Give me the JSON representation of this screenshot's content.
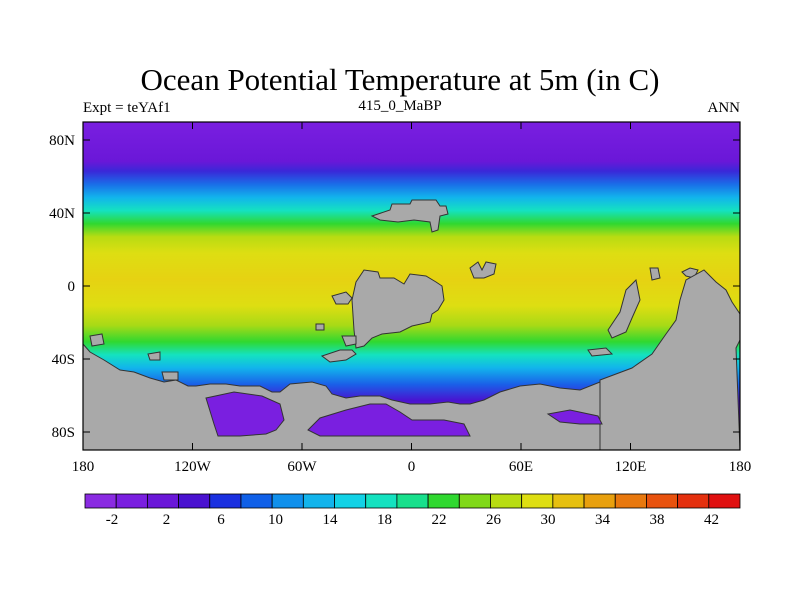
{
  "title": "Ocean Potential Temperature at 5m (in C)",
  "subtitle_left": "Expt = teYAf1",
  "subtitle_center": "415_0_MaBP",
  "subtitle_right": "ANN",
  "map": {
    "lat_ticks": [
      "80N",
      "40N",
      "0",
      "40S",
      "80S"
    ],
    "lon_ticks": [
      "180",
      "120W",
      "60W",
      "0",
      "60E",
      "120E",
      "180"
    ],
    "land_color": "#a9a9a9"
  },
  "colorbar": {
    "labels": [
      "-2",
      "2",
      "6",
      "10",
      "14",
      "18",
      "22",
      "26",
      "30",
      "34",
      "38",
      "42"
    ],
    "colors": [
      "#8a2be2",
      "#7a1fe0",
      "#6a17d8",
      "#4a12d0",
      "#1a30e0",
      "#1060e8",
      "#1090ec",
      "#12b4ec",
      "#12d2e6",
      "#14e2c0",
      "#18e08c",
      "#30d830",
      "#80d818",
      "#b8dc12",
      "#dede12",
      "#e6c010",
      "#e8a00e",
      "#e8780e",
      "#e8520e",
      "#e4300e",
      "#e01010"
    ]
  }
}
